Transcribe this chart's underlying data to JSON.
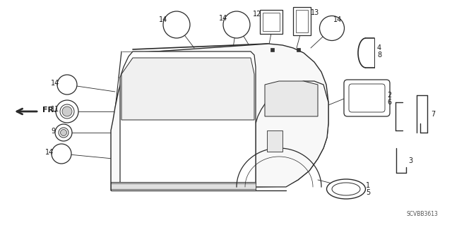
{
  "part_code": "SCVBB3613",
  "background_color": "#ffffff",
  "line_color": "#2a2a2a",
  "text_color": "#1a1a1a",
  "fig_width": 6.4,
  "fig_height": 3.19,
  "dpi": 100
}
